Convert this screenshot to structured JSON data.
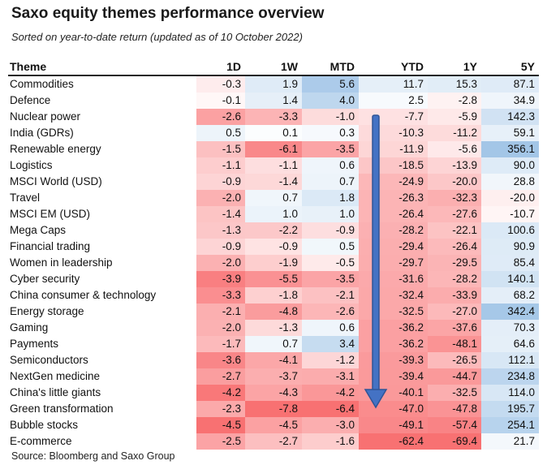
{
  "title": "Saxo equity themes performance overview",
  "subtitle": "Sorted on year-to-date return (updated as of 10 October 2022)",
  "source": "Source: Bloomberg and Saxo Group",
  "colors": {
    "positive": "#9ec3e6",
    "negative": "#f8696b",
    "neutral": "#ffffff",
    "arrow": "#4472c4",
    "arrow_outline": "#2f5597"
  },
  "chart_data": {
    "type": "table",
    "columns": [
      "Theme",
      "1D",
      "1W",
      "MTD",
      "YTD",
      "1Y",
      "5Y"
    ],
    "rows": [
      {
        "theme": "Commodities",
        "values": [
          "-0.3",
          "1.9",
          "5.6",
          "11.7",
          "15.3",
          "87.1"
        ]
      },
      {
        "theme": "Defence",
        "values": [
          "-0.1",
          "1.4",
          "4.0",
          "2.5",
          "-2.8",
          "34.9"
        ]
      },
      {
        "theme": "Nuclear power",
        "values": [
          "-2.6",
          "-3.3",
          "-1.0",
          "-7.7",
          "-5.9",
          "142.3"
        ]
      },
      {
        "theme": "India (GDRs)",
        "values": [
          "0.5",
          "0.1",
          "0.3",
          "-10.3",
          "-11.2",
          "59.1"
        ]
      },
      {
        "theme": "Renewable energy",
        "values": [
          "-1.5",
          "-6.1",
          "-3.5",
          "-11.9",
          "-5.6",
          "356.1"
        ]
      },
      {
        "theme": "Logistics",
        "values": [
          "-1.1",
          "-1.1",
          "0.6",
          "-18.5",
          "-13.9",
          "90.0"
        ]
      },
      {
        "theme": "MSCI World (USD)",
        "values": [
          "-0.9",
          "-1.4",
          "0.7",
          "-24.9",
          "-20.0",
          "28.8"
        ]
      },
      {
        "theme": "Travel",
        "values": [
          "-2.0",
          "0.7",
          "1.8",
          "-26.3",
          "-32.3",
          "-20.0"
        ]
      },
      {
        "theme": "MSCI EM (USD)",
        "values": [
          "-1.4",
          "1.0",
          "1.0",
          "-26.4",
          "-27.6",
          "-10.7"
        ]
      },
      {
        "theme": "Mega Caps",
        "values": [
          "-1.3",
          "-2.2",
          "-0.9",
          "-28.2",
          "-22.1",
          "100.6"
        ]
      },
      {
        "theme": "Financial trading",
        "values": [
          "-0.9",
          "-0.9",
          "0.5",
          "-29.4",
          "-26.4",
          "90.9"
        ]
      },
      {
        "theme": "Women in leadership",
        "values": [
          "-2.0",
          "-1.9",
          "-0.5",
          "-29.7",
          "-29.5",
          "85.4"
        ]
      },
      {
        "theme": "Cyber security",
        "values": [
          "-3.9",
          "-5.5",
          "-3.5",
          "-31.6",
          "-28.2",
          "140.1"
        ]
      },
      {
        "theme": "China consumer & technology",
        "values": [
          "-3.3",
          "-1.8",
          "-2.1",
          "-32.4",
          "-33.9",
          "68.2"
        ]
      },
      {
        "theme": "Energy storage",
        "values": [
          "-2.1",
          "-4.8",
          "-2.6",
          "-32.5",
          "-27.0",
          "342.4"
        ]
      },
      {
        "theme": "Gaming",
        "values": [
          "-2.0",
          "-1.3",
          "0.6",
          "-36.2",
          "-37.6",
          "70.3"
        ]
      },
      {
        "theme": "Payments",
        "values": [
          "-1.7",
          "0.7",
          "3.4",
          "-36.2",
          "-48.1",
          "64.6"
        ]
      },
      {
        "theme": "Semiconductors",
        "values": [
          "-3.6",
          "-4.1",
          "-1.2",
          "-39.3",
          "-26.5",
          "112.1"
        ]
      },
      {
        "theme": "NextGen medicine",
        "values": [
          "-2.7",
          "-3.7",
          "-3.1",
          "-39.4",
          "-44.7",
          "234.8"
        ]
      },
      {
        "theme": "China's little giants",
        "values": [
          "-4.2",
          "-4.3",
          "-4.2",
          "-40.1",
          "-32.5",
          "114.0"
        ]
      },
      {
        "theme": "Green transformation",
        "values": [
          "-2.3",
          "-7.8",
          "-6.4",
          "-47.0",
          "-47.8",
          "195.7"
        ]
      },
      {
        "theme": "Bubble stocks",
        "values": [
          "-4.5",
          "-4.5",
          "-3.0",
          "-49.1",
          "-57.4",
          "254.1"
        ]
      },
      {
        "theme": "E-commerce",
        "values": [
          "-2.5",
          "-2.7",
          "-1.6",
          "-62.4",
          "-69.4",
          "21.7"
        ]
      }
    ]
  }
}
